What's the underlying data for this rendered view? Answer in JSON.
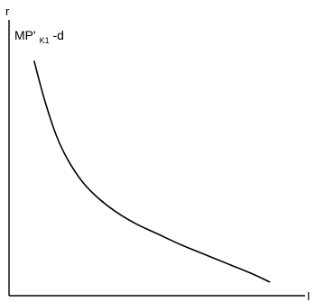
{
  "chart_data": {
    "type": "line",
    "xlabel": "I",
    "ylabel": "r",
    "xlim": [
      0,
      10
    ],
    "ylim": [
      0,
      10
    ],
    "grid": false,
    "series": [
      {
        "name": "MP'K1-d",
        "label_main": "MP'",
        "label_sub": "K1",
        "label_tail": "-d",
        "color": "#000000",
        "x": [
          0.85,
          1.2,
          1.6,
          2.0,
          2.5,
          3.0,
          3.6,
          4.3,
          5.0,
          5.8,
          6.6,
          7.4,
          8.2,
          8.8
        ],
        "y": [
          8.5,
          7.1,
          5.8,
          4.9,
          4.1,
          3.55,
          3.05,
          2.6,
          2.25,
          1.85,
          1.5,
          1.15,
          0.8,
          0.5
        ]
      }
    ]
  },
  "colors": {
    "axis": "#000000",
    "curve": "#000000",
    "background": "#ffffff"
  }
}
